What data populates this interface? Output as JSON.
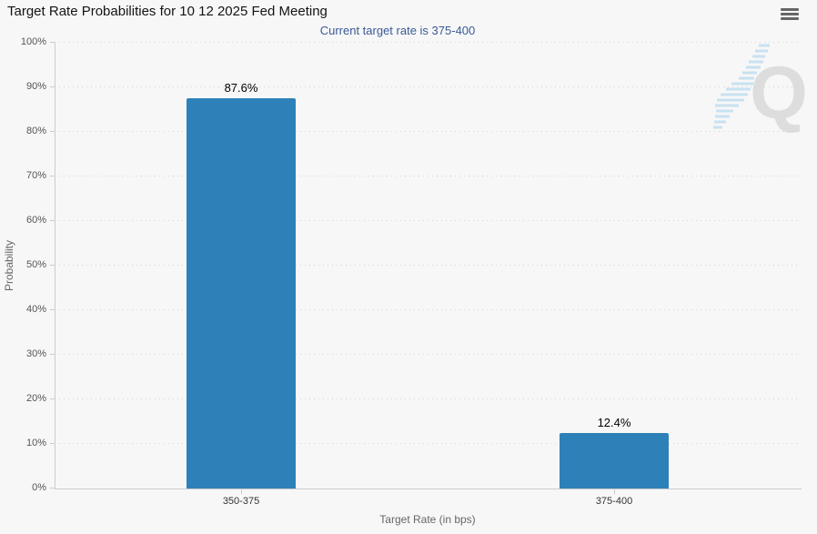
{
  "header": {
    "title": "Target Rate Probabilities for 10 12 2025 Fed Meeting",
    "menu_icon": "hamburger-icon"
  },
  "chart_data": {
    "type": "bar",
    "title": "Target Rate Probabilities for 10 12 2025 Fed Meeting",
    "subtitle": "Current target rate is 375-400",
    "categories": [
      "350-375",
      "375-400"
    ],
    "values": [
      87.6,
      12.4
    ],
    "data_labels": [
      "87.6%",
      "12.4%"
    ],
    "xlabel": "Target Rate (in bps)",
    "ylabel": "Probability",
    "ylim": [
      0,
      100
    ],
    "ytick_step": 10,
    "ytick_labels": [
      "0%",
      "10%",
      "20%",
      "30%",
      "40%",
      "50%",
      "60%",
      "70%",
      "80%",
      "90%",
      "100%"
    ],
    "grid": "horizontal-dotted",
    "legend": "none",
    "bar_color": "#2e81b8",
    "subtitle_color": "#3a5a98",
    "background_color": "#f7f7f7",
    "watermark_letter": "Q"
  }
}
